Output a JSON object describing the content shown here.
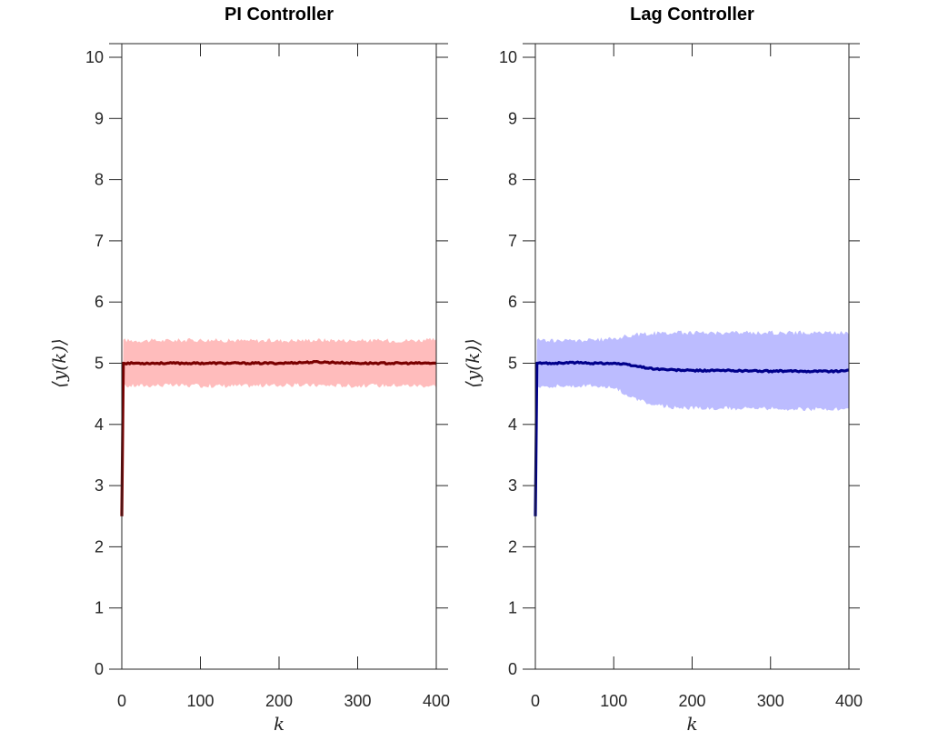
{
  "chart_data": [
    {
      "type": "line",
      "title": "PI Controller",
      "xlabel": "k",
      "ylabel": "⟨y(k)⟩",
      "xlim": [
        0,
        400
      ],
      "ylim": [
        0,
        10
      ],
      "xticks": [
        "0",
        "100",
        "200",
        "300",
        "400"
      ],
      "yticks": [
        "0",
        "1",
        "2",
        "3",
        "4",
        "5",
        "6",
        "7",
        "8",
        "9",
        "10"
      ],
      "grid": false,
      "colors": {
        "line": "#7a0000",
        "band": "#ffbcbc"
      },
      "series": [
        {
          "x": [
            0,
            2,
            10,
            50,
            100,
            150,
            200,
            250,
            300,
            350,
            400
          ],
          "values": [
            2.5,
            5.0,
            5.0,
            5.0,
            5.0,
            5.0,
            5.0,
            5.02,
            5.0,
            5.0,
            5.0
          ],
          "lower": [
            2.5,
            4.62,
            4.63,
            4.64,
            4.63,
            4.63,
            4.64,
            4.64,
            4.63,
            4.64,
            4.63
          ],
          "upper": [
            2.5,
            5.38,
            5.37,
            5.37,
            5.38,
            5.37,
            5.37,
            5.38,
            5.37,
            5.37,
            5.38
          ]
        }
      ]
    },
    {
      "type": "line",
      "title": "Lag Controller",
      "xlabel": "k",
      "ylabel": "⟨y(k)⟩",
      "xlim": [
        0,
        400
      ],
      "ylim": [
        0,
        10
      ],
      "xticks": [
        "0",
        "100",
        "200",
        "300",
        "400"
      ],
      "yticks": [
        "0",
        "1",
        "2",
        "3",
        "4",
        "5",
        "6",
        "7",
        "8",
        "9",
        "10"
      ],
      "grid": false,
      "colors": {
        "line": "#00008b",
        "band": "#bcbcff"
      },
      "series": [
        {
          "x": [
            0,
            2,
            25,
            50,
            75,
            100,
            115,
            130,
            150,
            175,
            200,
            250,
            300,
            350,
            395,
            400
          ],
          "values": [
            2.5,
            5.0,
            5.0,
            5.01,
            5.0,
            5.0,
            4.98,
            4.95,
            4.91,
            4.89,
            4.88,
            4.88,
            4.87,
            4.87,
            4.87,
            4.9
          ],
          "lower": [
            2.5,
            4.62,
            4.63,
            4.63,
            4.63,
            4.6,
            4.5,
            4.4,
            4.32,
            4.28,
            4.27,
            4.26,
            4.26,
            4.25,
            4.24,
            4.25
          ],
          "upper": [
            2.5,
            5.38,
            5.37,
            5.37,
            5.38,
            5.4,
            5.44,
            5.47,
            5.49,
            5.5,
            5.5,
            5.5,
            5.5,
            5.5,
            5.5,
            5.5
          ]
        }
      ]
    }
  ]
}
